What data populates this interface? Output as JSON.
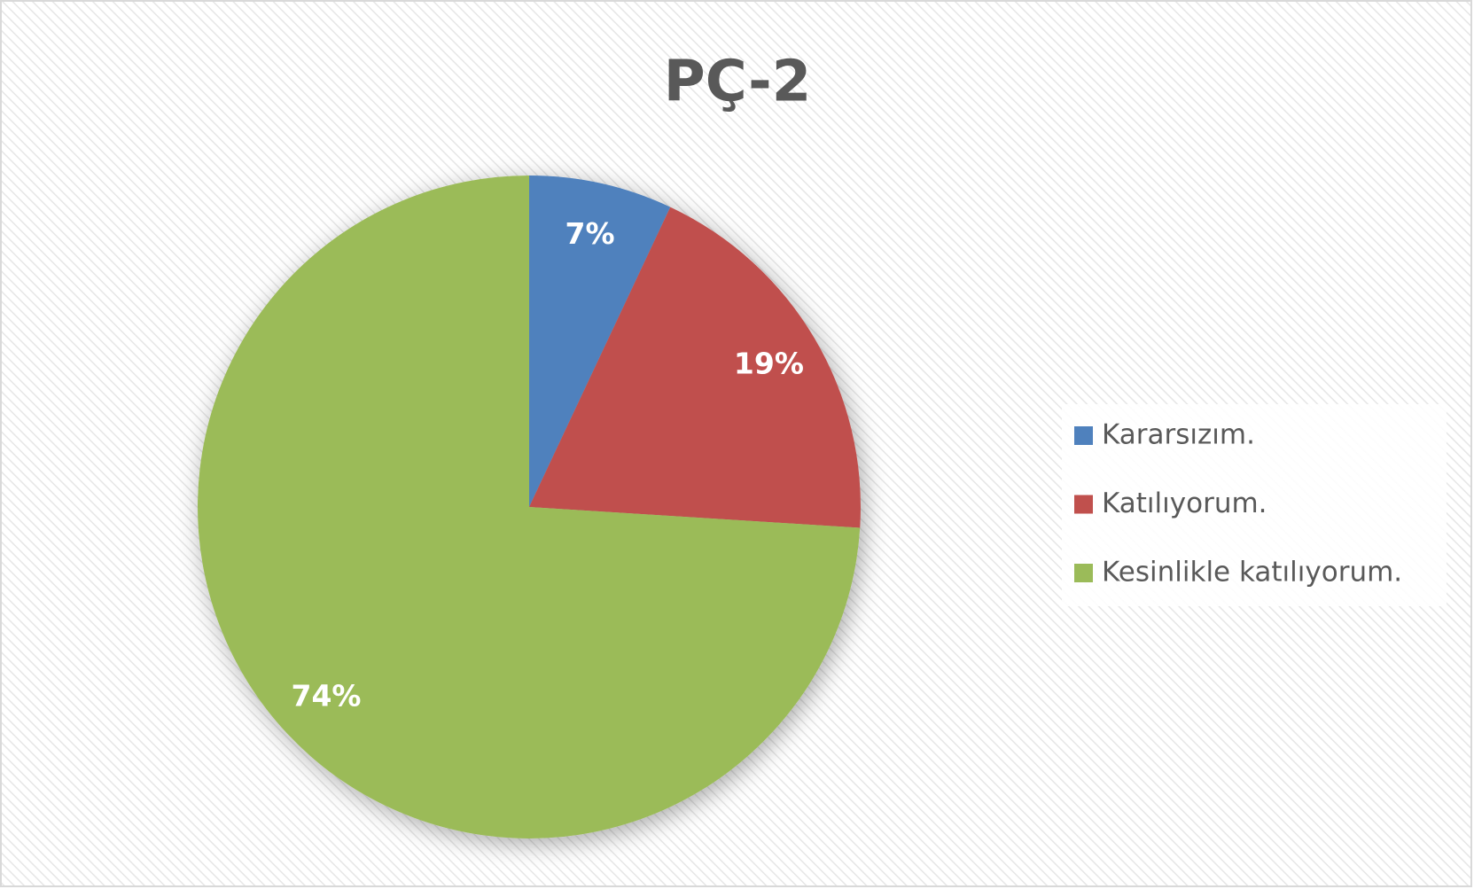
{
  "chart_data": {
    "type": "pie",
    "title": "PÇ-2",
    "categories": [
      "Kararsızım.",
      "Katılıyorum.",
      "Kesinlikle katılıyorum."
    ],
    "values": [
      7,
      19,
      74
    ],
    "value_labels": [
      "7%",
      "19%",
      "74%"
    ],
    "colors": [
      "#4f81bd",
      "#c0504d",
      "#9bbb59"
    ],
    "legend": "right"
  }
}
